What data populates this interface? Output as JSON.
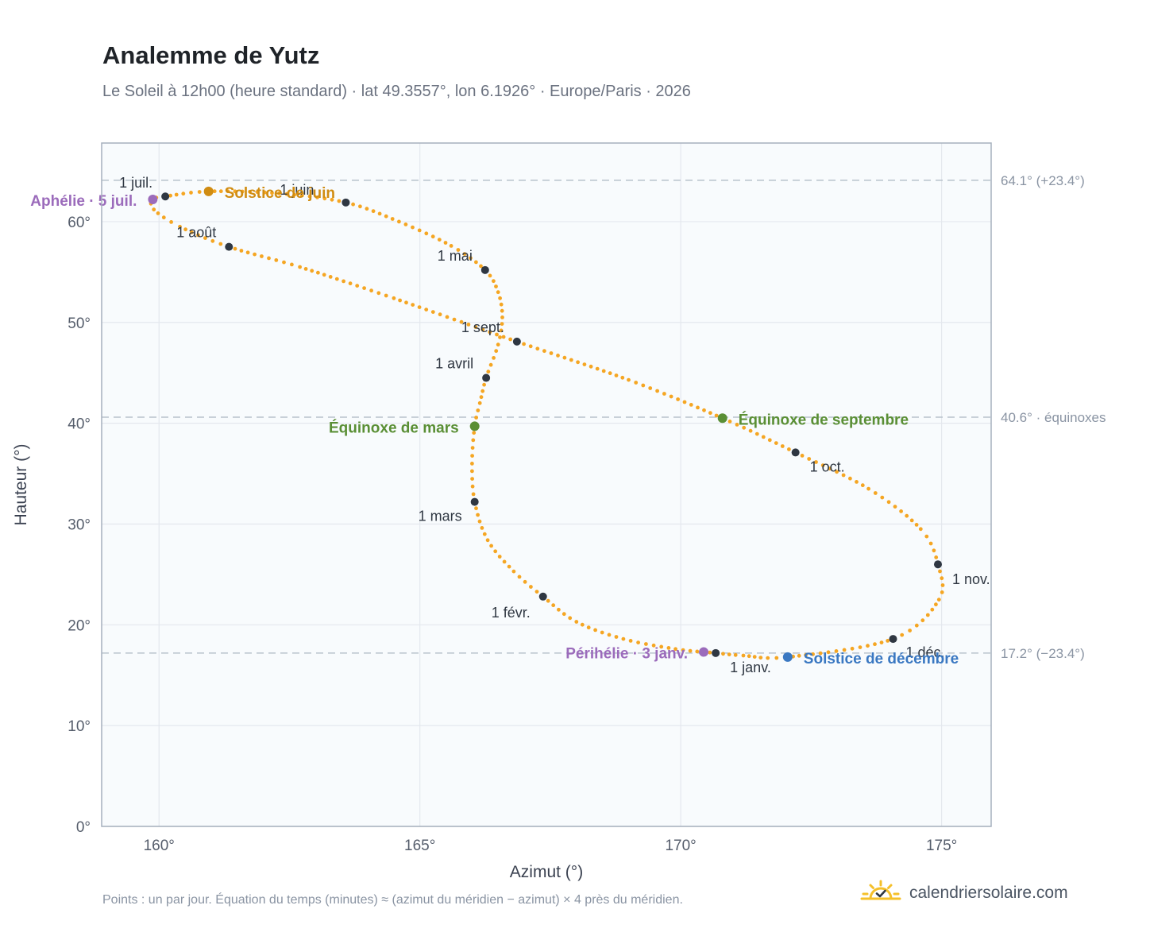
{
  "header": {
    "title": "Analemme de Yutz",
    "subtitle": "Le Soleil à 12h00 (heure standard) · lat 49.3557°, lon 6.1926° · Europe/Paris · 2026"
  },
  "footer": {
    "note": "Points : un par jour. Équation du temps (minutes) ≈ (azimut du méridien − azimut) × 4 près du méridien.",
    "brand": "calendriersolaire.com",
    "brand_icon": "sun-check-icon"
  },
  "colors": {
    "curve": "#f5a623",
    "month_marker": "#2f3742",
    "solstice_june": "#d08c12",
    "solstice_december": "#3a78c2",
    "equinox": "#5a8f35",
    "apsis": "#9b6bbb",
    "plot_bg": "#f8fbfd",
    "grid": "#e4e8ee",
    "reference_line": "#b8c2cc"
  },
  "chart_data": {
    "type": "scatter",
    "xlabel": "Azimut (°)",
    "ylabel": "Hauteur (°)",
    "xlim": [
      158.9,
      175.95
    ],
    "ylim": [
      0,
      67.8
    ],
    "xticks": [
      160,
      165,
      170,
      175
    ],
    "xtick_labels": [
      "160°",
      "165°",
      "170°",
      "175°"
    ],
    "yticks": [
      0,
      10,
      20,
      30,
      40,
      50,
      60
    ],
    "ytick_labels": [
      "0°",
      "10°",
      "20°",
      "30°",
      "40°",
      "50°",
      "60°"
    ],
    "grid": true,
    "reference_lines": [
      {
        "y": 64.1,
        "label": "64.1° (+23.4°)"
      },
      {
        "y": 40.6,
        "label": "40.6° · équinoxes"
      },
      {
        "y": 17.2,
        "label": "17.2° (−23.4°)"
      }
    ],
    "month_markers": [
      {
        "label": "1 janv.",
        "az": 170.67,
        "alt": 17.2
      },
      {
        "label": "1 févr.",
        "az": 167.36,
        "alt": 22.8
      },
      {
        "label": "1 mars",
        "az": 166.05,
        "alt": 32.2
      },
      {
        "label": "1 avril",
        "az": 166.27,
        "alt": 44.5
      },
      {
        "label": "1 mai",
        "az": 166.25,
        "alt": 55.2
      },
      {
        "label": "1 juin",
        "az": 163.58,
        "alt": 61.9
      },
      {
        "label": "1 juil.",
        "az": 160.12,
        "alt": 62.5
      },
      {
        "label": "1 août",
        "az": 161.34,
        "alt": 57.5
      },
      {
        "label": "1 sept.",
        "az": 166.86,
        "alt": 48.1
      },
      {
        "label": "1 oct.",
        "az": 172.2,
        "alt": 37.1
      },
      {
        "label": "1 nov.",
        "az": 174.93,
        "alt": 26.0
      },
      {
        "label": "1 déc.",
        "az": 174.07,
        "alt": 18.6
      }
    ],
    "events": [
      {
        "label": "Solstice de juin",
        "az": 160.95,
        "alt": 63.0,
        "kind": "solstice_june"
      },
      {
        "label": "Solstice de décembre",
        "az": 172.05,
        "alt": 16.8,
        "kind": "solstice_december"
      },
      {
        "label": "Équinoxe de mars",
        "az": 166.05,
        "alt": 39.7,
        "kind": "equinox"
      },
      {
        "label": "Équinoxe de septembre",
        "az": 170.8,
        "alt": 40.5,
        "kind": "equinox"
      },
      {
        "label": "Aphélie · 5 juil.",
        "az": 159.88,
        "alt": 62.2,
        "kind": "apsis"
      },
      {
        "label": "Périhélie · 3 janv.",
        "az": 170.44,
        "alt": 17.3,
        "kind": "apsis"
      }
    ],
    "curve_points": [
      [
        170.67,
        17.2
      ],
      [
        169.9,
        17.6
      ],
      [
        168.9,
        18.6
      ],
      [
        168.0,
        20.3
      ],
      [
        167.36,
        22.8
      ],
      [
        166.8,
        25.3
      ],
      [
        166.3,
        28.4
      ],
      [
        166.05,
        32.2
      ],
      [
        166.0,
        36.0
      ],
      [
        166.05,
        39.7
      ],
      [
        166.15,
        42.0
      ],
      [
        166.27,
        44.5
      ],
      [
        166.5,
        47.8
      ],
      [
        166.58,
        50.5
      ],
      [
        166.5,
        53.0
      ],
      [
        166.25,
        55.2
      ],
      [
        165.6,
        57.6
      ],
      [
        164.6,
        60.0
      ],
      [
        163.58,
        61.9
      ],
      [
        162.3,
        62.8
      ],
      [
        160.95,
        63.0
      ],
      [
        160.12,
        62.5
      ],
      [
        159.88,
        62.2
      ],
      [
        159.9,
        61.2
      ],
      [
        160.4,
        59.5
      ],
      [
        161.34,
        57.5
      ],
      [
        162.7,
        55.5
      ],
      [
        164.5,
        52.4
      ],
      [
        166.86,
        48.1
      ],
      [
        169.0,
        44.3
      ],
      [
        170.8,
        40.5
      ],
      [
        172.2,
        37.1
      ],
      [
        173.6,
        33.5
      ],
      [
        174.6,
        29.5
      ],
      [
        174.93,
        26.0
      ],
      [
        174.95,
        22.5
      ],
      [
        174.07,
        18.6
      ],
      [
        172.05,
        16.8
      ],
      [
        171.2,
        16.95
      ],
      [
        170.67,
        17.2
      ]
    ]
  }
}
